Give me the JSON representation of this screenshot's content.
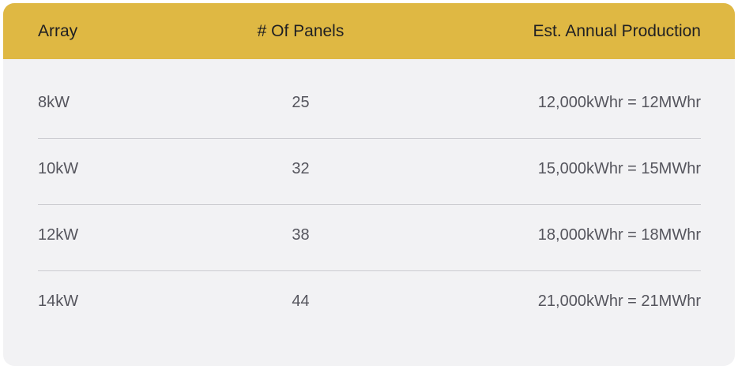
{
  "table": {
    "headers": [
      "Array",
      "# Of Panels",
      "Est. Annual Production"
    ],
    "rows": [
      {
        "array": "8kW",
        "panels": "25",
        "production": "12,000kWhr = 12MWhr"
      },
      {
        "array": "10kW",
        "panels": "32",
        "production": "15,000kWhr = 15MWhr"
      },
      {
        "array": "12kW",
        "panels": "38",
        "production": "18,000kWhr = 18MWhr"
      },
      {
        "array": "14kW",
        "panels": "44",
        "production": "21,000kWhr = 21MWhr"
      }
    ]
  },
  "colors": {
    "header_bg": "#dfb843",
    "card_bg": "#f2f2f4",
    "header_text": "#1f1f23",
    "cell_text": "#55555d",
    "divider": "#cbcbd0"
  }
}
